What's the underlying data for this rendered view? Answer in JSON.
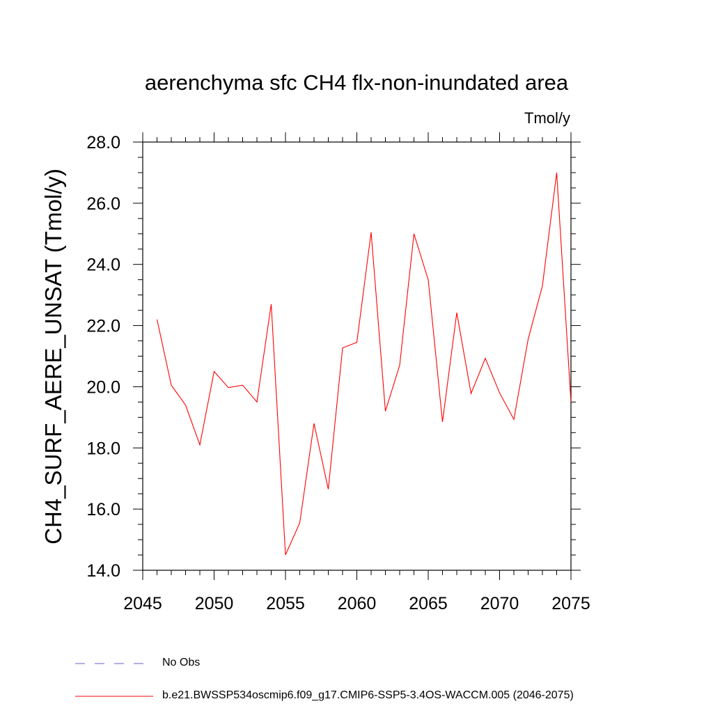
{
  "chart_data": {
    "type": "line",
    "title": "aerenchyma sfc CH4 flx-non-inundated area",
    "units_label": "Tmol/y",
    "ylabel": "CH4_SURF_AERE_UNSAT  (Tmol/y)",
    "xlabel": "",
    "xlim": [
      2045,
      2075
    ],
    "ylim": [
      14.0,
      28.0
    ],
    "x_ticks": [
      "2045",
      "2050",
      "2055",
      "2060",
      "2065",
      "2070",
      "2075"
    ],
    "y_ticks": [
      "14.0",
      "16.0",
      "18.0",
      "20.0",
      "22.0",
      "24.0",
      "26.0",
      "28.0"
    ],
    "x": [
      2046,
      2047,
      2048,
      2049,
      2050,
      2051,
      2052,
      2053,
      2054,
      2055,
      2056,
      2057,
      2058,
      2059,
      2060,
      2061,
      2062,
      2063,
      2064,
      2065,
      2066,
      2067,
      2068,
      2069,
      2070,
      2071,
      2072,
      2073,
      2074,
      2075
    ],
    "series": [
      {
        "name": "b.e21.BWSSP534oscmip6.f09_g17.CMIP6-SSP5-3.4OS-WACCM.005 (2046-2075)",
        "color": "#ff0000",
        "values": [
          22.2,
          20.05,
          19.4,
          18.1,
          20.5,
          19.97,
          20.05,
          19.5,
          22.7,
          14.5,
          15.55,
          18.8,
          16.65,
          21.27,
          21.45,
          25.05,
          19.2,
          20.7,
          25.0,
          23.5,
          18.85,
          22.42,
          19.78,
          20.93,
          19.8,
          18.93,
          21.55,
          23.3,
          27.0,
          19.5
        ]
      }
    ],
    "legend": [
      {
        "label": "No Obs",
        "color": "#6a5acd",
        "style": "dashed"
      },
      {
        "label": "b.e21.BWSSP534oscmip6.f09_g17.CMIP6-SSP5-3.4OS-WACCM.005 (2046-2075)",
        "color": "#ff0000",
        "style": "solid"
      }
    ]
  }
}
